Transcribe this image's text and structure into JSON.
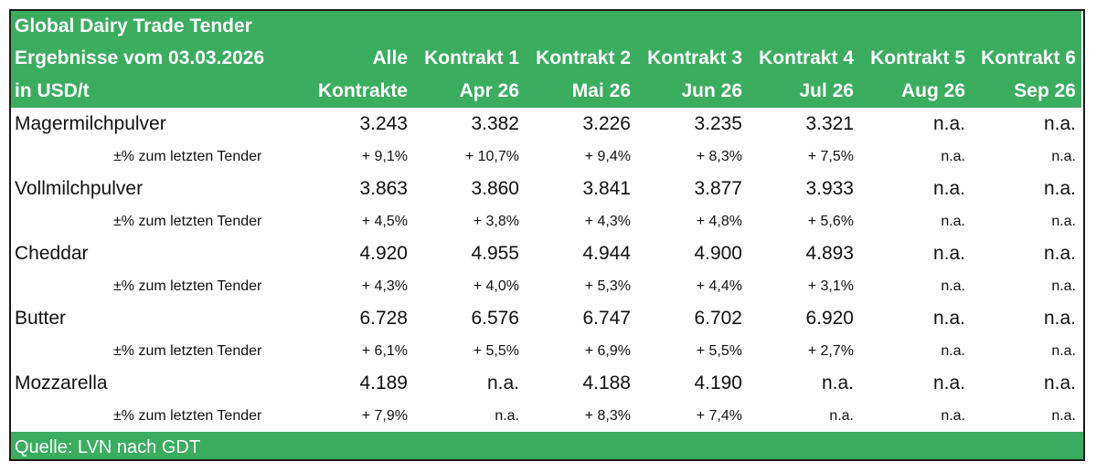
{
  "header": {
    "title": "Global Dairy Trade Tender",
    "subtitle": "Ergebnisse vom 03.03.2026",
    "unit": "in USD/t",
    "columns": [
      {
        "line1": "Alle",
        "line2": "Kontrakte"
      },
      {
        "line1": "Kontrakt 1",
        "line2": "Apr 26"
      },
      {
        "line1": "Kontrakt 2",
        "line2": "Mai 26"
      },
      {
        "line1": "Kontrakt 3",
        "line2": "Jun 26"
      },
      {
        "line1": "Kontrakt 4",
        "line2": "Jul 26"
      },
      {
        "line1": "Kontrakt 5",
        "line2": "Aug 26"
      },
      {
        "line1": "Kontrakt 6",
        "line2": "Sep 26"
      }
    ]
  },
  "change_label": "±% zum letzten Tender",
  "products": [
    {
      "name": "Magermilchpulver",
      "prices": [
        "3.243",
        "3.382",
        "3.226",
        "3.235",
        "3.321",
        "n.a.",
        "n.a."
      ],
      "changes": [
        "+ 9,1%",
        "+ 10,7%",
        "+ 9,4%",
        "+ 8,3%",
        "+ 7,5%",
        "n.a.",
        "n.a."
      ]
    },
    {
      "name": "Vollmilchpulver",
      "prices": [
        "3.863",
        "3.860",
        "3.841",
        "3.877",
        "3.933",
        "n.a.",
        "n.a."
      ],
      "changes": [
        "+ 4,5%",
        "+ 3,8%",
        "+ 4,3%",
        "+ 4,8%",
        "+ 5,6%",
        "n.a.",
        "n.a."
      ]
    },
    {
      "name": "Cheddar",
      "prices": [
        "4.920",
        "4.955",
        "4.944",
        "4.900",
        "4.893",
        "n.a.",
        "n.a."
      ],
      "changes": [
        "+ 4,3%",
        "+ 4,0%",
        "+ 5,3%",
        "+ 4,4%",
        "+ 3,1%",
        "n.a.",
        "n.a."
      ]
    },
    {
      "name": "Butter",
      "prices": [
        "6.728",
        "6.576",
        "6.747",
        "6.702",
        "6.920",
        "n.a.",
        "n.a."
      ],
      "changes": [
        "+ 6,1%",
        "+ 5,5%",
        "+ 6,9%",
        "+ 5,5%",
        "+ 2,7%",
        "n.a.",
        "n.a."
      ]
    },
    {
      "name": "Mozzarella",
      "prices": [
        "4.189",
        "n.a.",
        "4.188",
        "4.190",
        "n.a.",
        "n.a.",
        "n.a."
      ],
      "changes": [
        "+ 7,9%",
        "n.a.",
        "+ 8,3%",
        "+ 7,4%",
        "n.a.",
        "n.a.",
        "n.a."
      ]
    }
  ],
  "footer": {
    "source": "Quelle: LVN nach  GDT"
  },
  "colors": {
    "accent": "#3aad5f",
    "border": "#1a1a1a"
  }
}
